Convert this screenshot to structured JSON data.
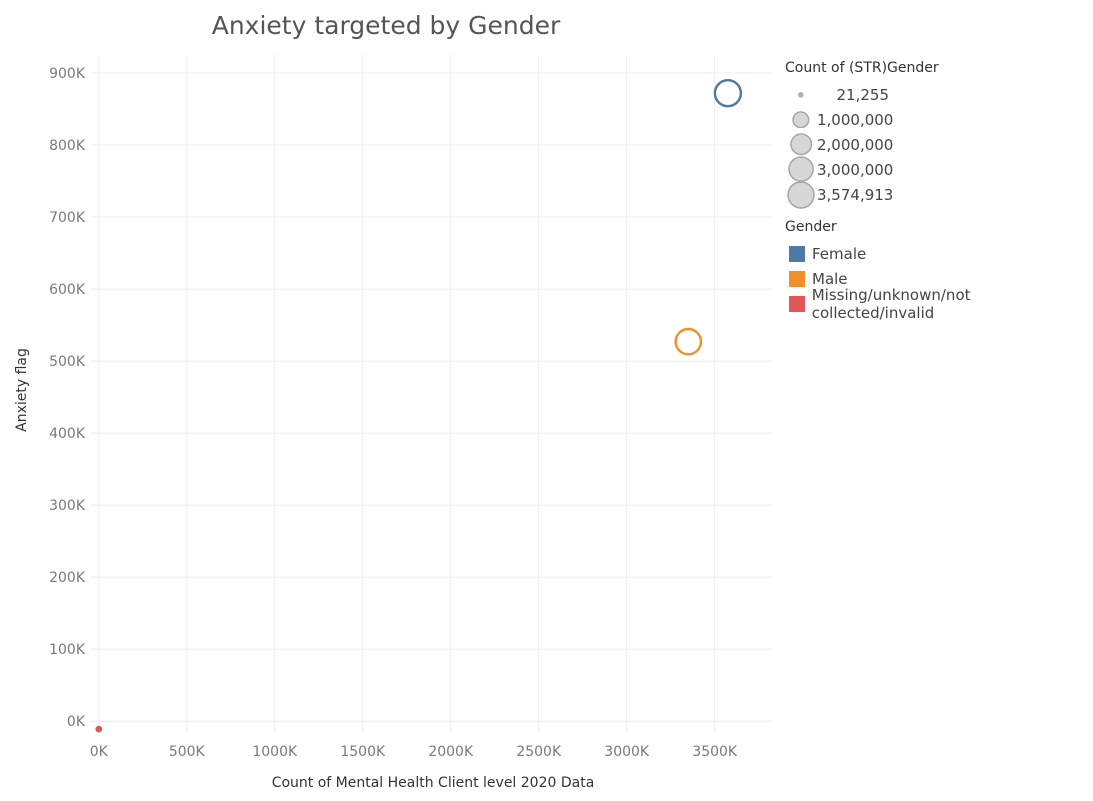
{
  "chart_data": {
    "type": "scatter",
    "title": "Anxiety targeted by Gender",
    "xlabel": "Count of Mental Health Client level 2020 Data",
    "ylabel": "Anxiety flag",
    "xlim": [
      -50000,
      3820000
    ],
    "ylim": [
      -15000,
      925000
    ],
    "x_ticks": [
      0,
      500000,
      1000000,
      1500000,
      2000000,
      2500000,
      3000000,
      3500000
    ],
    "x_tick_labels": [
      "0K",
      "500K",
      "1000K",
      "1500K",
      "2000K",
      "2500K",
      "3000K",
      "3500K"
    ],
    "y_ticks": [
      0,
      100000,
      200000,
      300000,
      400000,
      500000,
      600000,
      700000,
      800000,
      900000
    ],
    "y_tick_labels": [
      "0K",
      "100K",
      "200K",
      "300K",
      "400K",
      "500K",
      "600K",
      "700K",
      "800K",
      "900K"
    ],
    "grid": true,
    "legend_placement": "right",
    "size_legend": {
      "title": "Count of (STR)Gender",
      "entries": [
        {
          "label": "21,255",
          "value": 21255
        },
        {
          "label": "1,000,000",
          "value": 1000000
        },
        {
          "label": "2,000,000",
          "value": 2000000
        },
        {
          "label": "3,000,000",
          "value": 3000000
        },
        {
          "label": "3,574,913",
          "value": 3574913
        }
      ]
    },
    "color_legend": {
      "title": "Gender",
      "entries": [
        {
          "label": "Female",
          "color": "#4e79a7"
        },
        {
          "label": "Male",
          "color": "#f28e2b"
        },
        {
          "label": "Missing/unknown/not collected/invalid",
          "color": "#e15759"
        }
      ]
    },
    "series": [
      {
        "name": "Female",
        "color": "#4e79a7",
        "x": 3574913,
        "y": 872000,
        "size": 3574913
      },
      {
        "name": "Male",
        "color": "#f28e2b",
        "x": 3350000,
        "y": 527000,
        "size": 3350000
      },
      {
        "name": "Missing/unknown/not collected/invalid",
        "color": "#e15759",
        "x": 0,
        "y": -11000,
        "size": 21255
      }
    ]
  }
}
